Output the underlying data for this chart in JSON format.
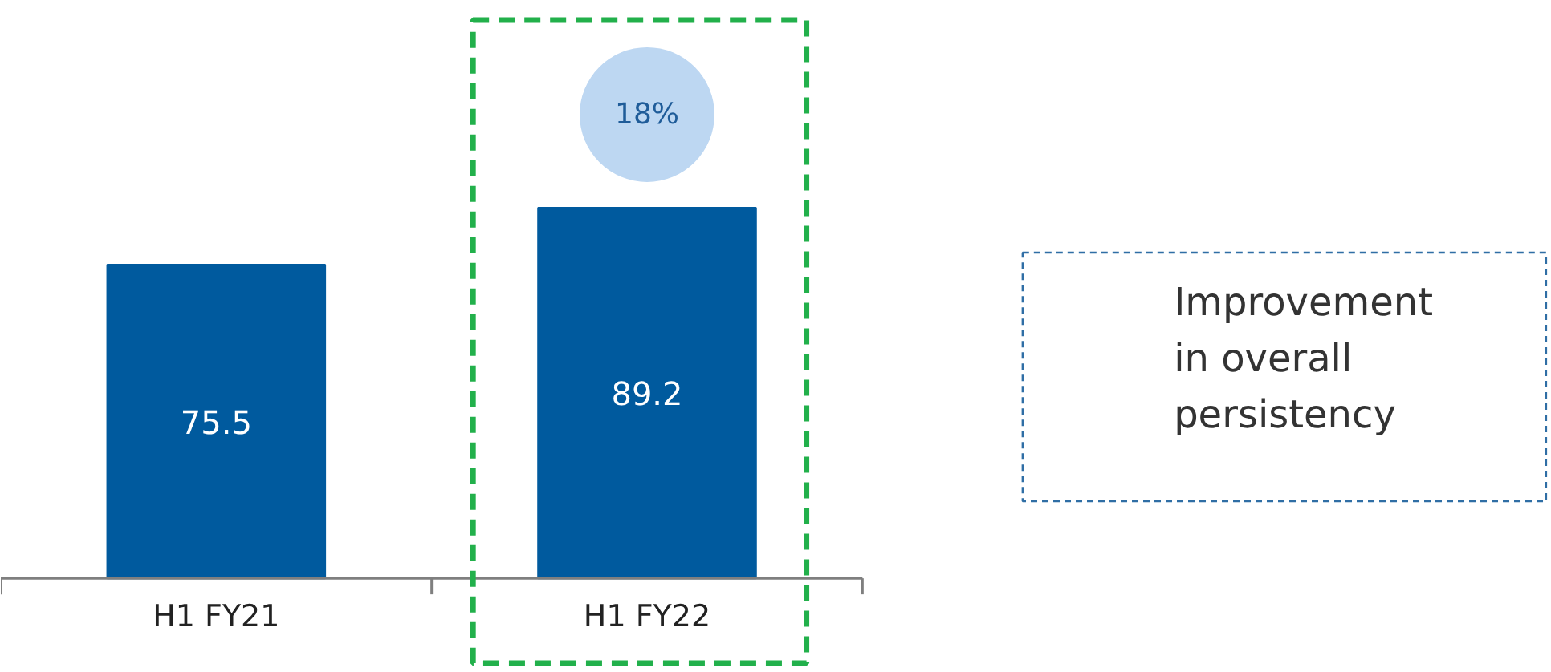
{
  "chart_data": {
    "type": "bar",
    "categories": [
      "H1 FY21",
      "H1 FY22"
    ],
    "values": [
      75.5,
      89.2
    ],
    "color": "#005a9e",
    "data_labels": true,
    "annotations": [
      "18%",
      "Improvement in overall persistency"
    ]
  }
}
